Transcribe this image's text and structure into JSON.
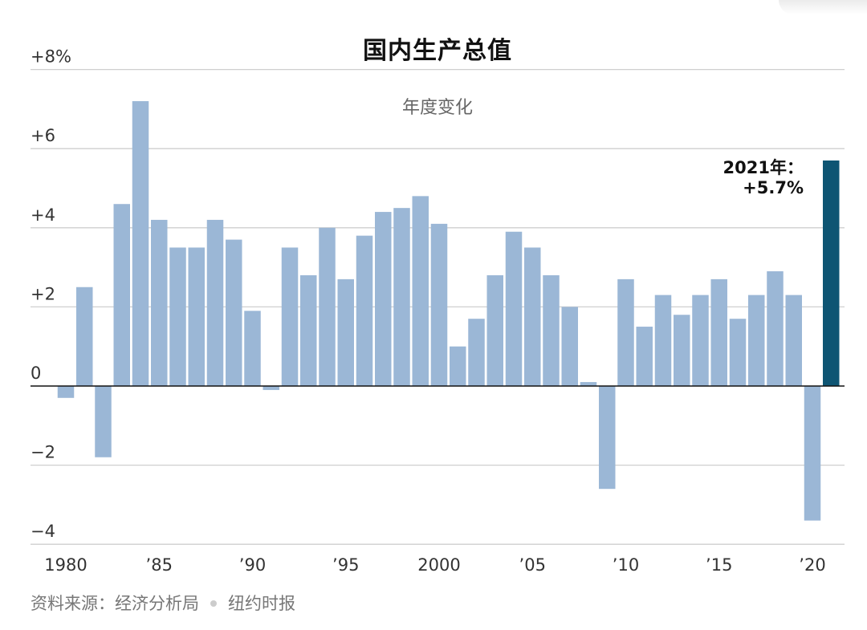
{
  "chart_data": {
    "type": "bar",
    "title": "国内生产总值",
    "subtitle": "年度变化",
    "x": [
      1980,
      1981,
      1982,
      1983,
      1984,
      1985,
      1986,
      1987,
      1988,
      1989,
      1990,
      1991,
      1992,
      1993,
      1994,
      1995,
      1996,
      1997,
      1998,
      1999,
      2000,
      2001,
      2002,
      2003,
      2004,
      2005,
      2006,
      2007,
      2008,
      2009,
      2010,
      2011,
      2012,
      2013,
      2014,
      2015,
      2016,
      2017,
      2018,
      2019,
      2020,
      2021
    ],
    "values": [
      -0.3,
      2.5,
      -1.8,
      4.6,
      7.2,
      4.2,
      3.5,
      3.5,
      4.2,
      3.7,
      1.9,
      -0.1,
      3.5,
      2.8,
      4.0,
      2.7,
      3.8,
      4.4,
      4.5,
      4.8,
      4.1,
      1.0,
      1.7,
      2.8,
      3.9,
      3.5,
      2.8,
      2.0,
      0.1,
      -2.6,
      2.7,
      1.5,
      2.3,
      1.8,
      2.3,
      2.7,
      1.7,
      2.3,
      2.9,
      2.3,
      -3.4,
      5.7
    ],
    "ylim": [
      -4,
      8
    ],
    "y_ticks": [
      {
        "value": 8,
        "label": "+8%"
      },
      {
        "value": 6,
        "label": "+6"
      },
      {
        "value": 4,
        "label": "+4"
      },
      {
        "value": 2,
        "label": "+2"
      },
      {
        "value": 0,
        "label": "0"
      },
      {
        "value": -2,
        "label": "−2"
      },
      {
        "value": -4,
        "label": "−4"
      }
    ],
    "x_ticks": [
      {
        "year": 1980,
        "label": "1980"
      },
      {
        "year": 1985,
        "label": "’85"
      },
      {
        "year": 1990,
        "label": "’90"
      },
      {
        "year": 1995,
        "label": "’95"
      },
      {
        "year": 2000,
        "label": "2000"
      },
      {
        "year": 2005,
        "label": "’05"
      },
      {
        "year": 2010,
        "label": "’10"
      },
      {
        "year": 2015,
        "label": "’15"
      },
      {
        "year": 2020,
        "label": "’20"
      }
    ],
    "annotation": {
      "year": 2021,
      "line1": "2021年：",
      "line2": "+5.7%"
    },
    "grid": true,
    "colors": {
      "bar": "#9bb7d6",
      "highlight": "#0e5573",
      "grid": "#cfcfcf",
      "axis": "#111111"
    }
  },
  "source": {
    "label": "资料来源：经济分析局",
    "publisher": "纽约时报"
  }
}
